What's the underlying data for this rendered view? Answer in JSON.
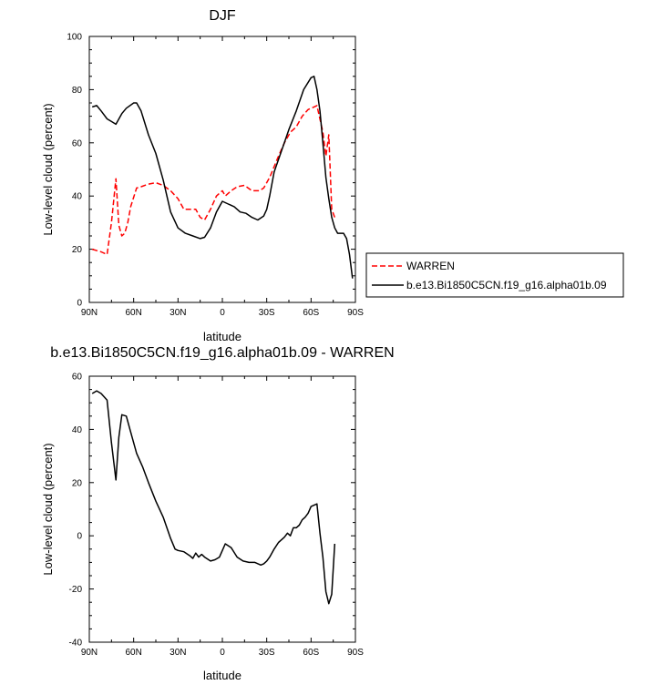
{
  "colors": {
    "warren": "#ff0000",
    "model": "#000000"
  },
  "chart_data": [
    {
      "type": "line",
      "title": "DJF",
      "xlabel": "latitude",
      "ylabel": "Low-level cloud (percent)",
      "xlim": [
        90,
        -90
      ],
      "ylim": [
        0,
        100
      ],
      "xticks": [
        90,
        60,
        30,
        0,
        -30,
        -60,
        -90
      ],
      "xtick_labels": [
        "90N",
        "60N",
        "30N",
        "0",
        "30S",
        "60S",
        "90S"
      ],
      "yticks": [
        0,
        20,
        40,
        60,
        80,
        100
      ],
      "ytick_labels": [
        "0",
        "20",
        "40",
        "60",
        "80",
        "100"
      ],
      "legend_position": "right",
      "series": [
        {
          "name": "WARREN",
          "style": "dashed",
          "color": "#ff0000",
          "x": [
            88,
            82,
            78,
            75,
            72,
            70,
            68,
            66,
            64,
            62,
            58,
            55,
            50,
            45,
            40,
            35,
            30,
            26,
            22,
            18,
            15,
            12,
            8,
            4,
            0,
            -2,
            -6,
            -10,
            -15,
            -20,
            -25,
            -28,
            -32,
            -38,
            -42,
            -46,
            -50,
            -54,
            -58,
            -62,
            -64,
            -68,
            -70,
            -72,
            -74,
            -76
          ],
          "y": [
            20,
            19,
            18,
            30,
            46.5,
            29,
            25,
            26,
            30,
            36,
            43,
            43.5,
            44.5,
            45,
            44,
            42,
            39,
            35,
            35,
            35,
            32,
            31,
            35,
            40,
            42,
            40,
            42,
            43.5,
            44,
            42,
            42,
            43,
            47,
            55,
            60,
            64,
            66,
            70,
            72.5,
            73.5,
            74,
            64,
            55,
            63,
            35,
            32
          ]
        },
        {
          "name": "b.e13.Bi1850C5CN.f19_g16.alpha01b.09",
          "style": "solid",
          "color": "#000000",
          "x": [
            88,
            85,
            82,
            78,
            75,
            72,
            68,
            65,
            60,
            58,
            55,
            50,
            45,
            40,
            35,
            30,
            25,
            20,
            15,
            12,
            8,
            4,
            0,
            -4,
            -8,
            -12,
            -16,
            -20,
            -24,
            -28,
            -30,
            -32,
            -35,
            -40,
            -45,
            -50,
            -55,
            -60,
            -62,
            -64,
            -66,
            -68,
            -70,
            -72,
            -74,
            -76,
            -78,
            -82,
            -84,
            -86,
            -88
          ],
          "y": [
            73.5,
            74,
            72,
            69,
            68,
            67,
            71,
            73,
            75,
            75,
            72,
            63,
            56,
            46,
            34,
            28,
            26,
            25,
            24,
            24.5,
            28,
            34,
            38,
            37,
            36,
            34,
            33.5,
            32,
            31,
            32.5,
            35,
            40,
            49,
            57,
            65,
            72,
            80,
            84.5,
            85,
            80,
            72,
            60,
            47,
            39,
            32,
            28,
            26,
            26,
            24,
            18,
            9
          ]
        }
      ]
    },
    {
      "type": "line",
      "title": "b.e13.Bi1850C5CN.f19_g16.alpha01b.09 - WARREN",
      "xlabel": "latitude",
      "ylabel": "Low-level cloud (percent)",
      "xlim": [
        90,
        -90
      ],
      "ylim": [
        -40,
        60
      ],
      "xticks": [
        90,
        60,
        30,
        0,
        -30,
        -60,
        -90
      ],
      "xtick_labels": [
        "90N",
        "60N",
        "30N",
        "0",
        "30S",
        "60S",
        "90S"
      ],
      "yticks": [
        -40,
        -20,
        0,
        20,
        40,
        60
      ],
      "ytick_labels": [
        "-40",
        "-20",
        "0",
        "20",
        "40",
        "60"
      ],
      "series": [
        {
          "style": "solid",
          "color": "#000000",
          "x": [
            88,
            85,
            82,
            78,
            75,
            72,
            70,
            68,
            65,
            62,
            58,
            54,
            50,
            45,
            40,
            35,
            32,
            30,
            26,
            22,
            20,
            18,
            16,
            14,
            12,
            8,
            5,
            2,
            0,
            -2,
            -6,
            -10,
            -14,
            -18,
            -22,
            -26,
            -28,
            -30,
            -32,
            -35,
            -38,
            -40,
            -42,
            -44,
            -46,
            -48,
            -50,
            -52,
            -54,
            -56,
            -58,
            -60,
            -62,
            -64,
            -66,
            -68,
            -70,
            -72,
            -74,
            -76
          ],
          "y": [
            53.5,
            54.5,
            53.5,
            51,
            35,
            21,
            37,
            45.5,
            45,
            39,
            31,
            26,
            20,
            13,
            7,
            -1,
            -5,
            -5.5,
            -6,
            -7.5,
            -8.5,
            -6.5,
            -8,
            -7,
            -8,
            -9.5,
            -9,
            -8,
            -5.5,
            -3,
            -4.5,
            -8,
            -9.5,
            -10,
            -10,
            -11,
            -10.5,
            -9.5,
            -8,
            -5,
            -2.5,
            -1.5,
            -0.5,
            1,
            0,
            3,
            3,
            4,
            6,
            7,
            8.5,
            11,
            11.5,
            12,
            1,
            -8,
            -21,
            -25.5,
            -22,
            -3
          ]
        }
      ]
    }
  ]
}
